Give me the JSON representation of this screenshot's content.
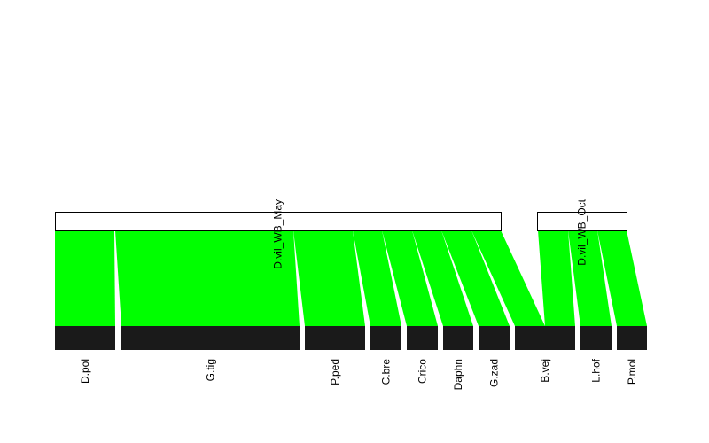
{
  "diagram": {
    "type": "bipartite-web",
    "higher_level": [
      {
        "name": "D.vil_WB_May"
      },
      {
        "name": "D.vil_WB_Oct"
      }
    ],
    "lower_level": [
      {
        "name": "D.pol"
      },
      {
        "name": "G.tig"
      },
      {
        "name": "P.ped"
      },
      {
        "name": "C.bre"
      },
      {
        "name": "Crico"
      },
      {
        "name": "Daphn"
      },
      {
        "name": "G.zad"
      },
      {
        "name": "B.vej"
      },
      {
        "name": "L.hof"
      },
      {
        "name": "P.mol"
      }
    ],
    "links": [
      {
        "from": "D.vil_WB_May",
        "to": "D.pol"
      },
      {
        "from": "D.vil_WB_May",
        "to": "G.tig"
      },
      {
        "from": "D.vil_WB_May",
        "to": "P.ped"
      },
      {
        "from": "D.vil_WB_May",
        "to": "C.bre"
      },
      {
        "from": "D.vil_WB_May",
        "to": "Crico"
      },
      {
        "from": "D.vil_WB_May",
        "to": "Daphn"
      },
      {
        "from": "D.vil_WB_May",
        "to": "G.zad"
      },
      {
        "from": "D.vil_WB_May",
        "to": "B.vej"
      },
      {
        "from": "D.vil_WB_Oct",
        "to": "B.vej"
      },
      {
        "from": "D.vil_WB_Oct",
        "to": "L.hof"
      },
      {
        "from": "D.vil_WB_Oct",
        "to": "P.mol"
      }
    ],
    "colors": {
      "link": "#00ff00",
      "higher_box": "#ffffff",
      "lower_box": "#1a1a1a",
      "outline": "#000000"
    }
  }
}
